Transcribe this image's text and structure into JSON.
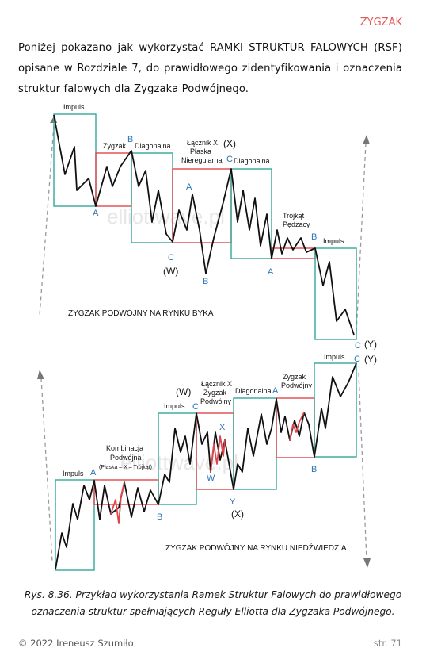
{
  "header": {
    "section": "ZYGZAK"
  },
  "intro_text": "Poniżej pokazano jak wykorzystać RAMKI STRUKTUR FALOWYCH (RSF) opisane w Rozdziale 7, do prawidłowego zidentyfikowania i oznaczenia struktur falowych dla Zygzaka Podwójnego.",
  "colors": {
    "header": "#e05a5a",
    "teal_frame": "#34a899",
    "red_frame": "#e0464b",
    "label_blue": "#2e75b6",
    "arrow_gray": "#9a9a9a"
  },
  "figure": {
    "watermark": "elliottwave.pl",
    "bull": {
      "title": "ZYGZAK PODWÓJNY NA RYNKU BYKA",
      "labels": {
        "impuls1": "Impuls",
        "zygzak": "Zygzak",
        "diagonalna1": "Diagonalna",
        "lacznik1": "Łącznik X",
        "lacznik2": "Płaska",
        "lacznik3": "Nieregularna",
        "x": "(X)",
        "diagonalna2": "Diagonalna",
        "trojkat1": "Trójkąt",
        "trojkat2": "Pędzący",
        "impuls2": "Impuls",
        "w": "(W)",
        "y": "(Y)"
      },
      "points": {
        "a1": "A",
        "b1": "B",
        "a2": "A",
        "c1": "C",
        "b2": "B",
        "c2": "C",
        "a3": "A",
        "b3": "B",
        "c3": "C"
      }
    },
    "bear": {
      "title": "ZYGZAK PODWÓJNY NA RYNKU NIEDŹWIEDZIA",
      "labels": {
        "impuls1": "Impuls",
        "komb1": "Kombinacja",
        "komb2": "Podwójna",
        "komb3": "(Płaska – X – Trójkąt)",
        "impuls2": "Impuls",
        "w": "(W)",
        "lacznik1": "Łącznik X",
        "lacznik2": "Zygzak",
        "lacznik3": "Podwójny",
        "diagonalna": "Diagonalna",
        "zyg1": "Zygzak",
        "zyg2": "Podwójny",
        "impuls3": "Impuls",
        "x": "(X)",
        "y": "(Y)"
      },
      "points": {
        "a1": "A",
        "b1": "B",
        "c1": "C",
        "w": "W",
        "xp": "X",
        "yp": "Y",
        "a2": "A",
        "b2": "B",
        "c2": "C"
      }
    }
  },
  "caption": {
    "line1": "Rys. 8.36. Przykład wykorzystania Ramek Struktur Falowych do prawidłowego",
    "line2": "oznaczenia struktur spełniających Reguły Elliotta dla Zygzaka Podwójnego."
  },
  "footer": {
    "copyright": "© 2022 Ireneusz Szumiło",
    "page": "str. 71"
  }
}
